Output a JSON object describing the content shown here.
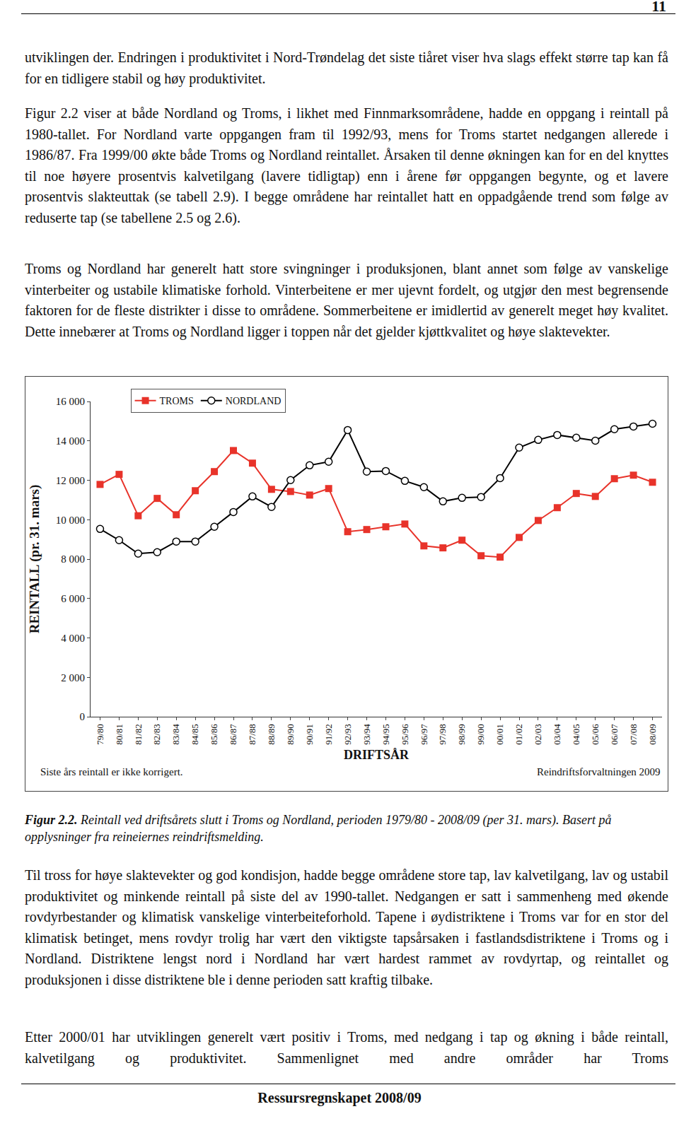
{
  "header": {
    "page_number": "11"
  },
  "paragraphs_before": [
    "utviklingen der. Endringen i produktivitet i Nord-Trøndelag det siste tiåret viser hva slags effekt større tap kan få for en tidligere stabil og høy produktivitet.",
    "Figur 2.2 viser at både Nordland og Troms, i likhet med Finnmarksområdene, hadde en oppgang i reintall på 1980-tallet. For Nordland varte oppgangen fram til 1992/93, mens for Troms startet nedgangen allerede i 1986/87. Fra 1999/00 økte både Troms og Nordland reintallet. Årsaken til denne økningen kan for en del knyttes til noe høyere prosentvis kalvetilgang (lavere tidligtap) enn i årene før oppgangen begynte, og et lavere prosentvis slakteuttak (se tabell 2.9). I begge områdene har reintallet hatt en oppadgående trend som følge av reduserte tap (se tabellene 2.5 og 2.6).",
    "Troms og Nordland har generelt hatt store svingninger i produksjonen, blant annet som følge av vanskelige vinterbeiter og ustabile klimatiske forhold. Vinterbeitene er mer ujevnt fordelt, og utgjør den mest begrensende faktoren for de fleste distrikter i disse to områdene. Sommerbeitene er imidlertid av generelt meget høy kvalitet. Dette innebærer at Troms og Nordland ligger i toppen når det gjelder kjøttkvalitet og høye slaktevekter."
  ],
  "chart_data": {
    "type": "line",
    "x_label": "DRIFTSÅR",
    "y_label": "REINTALL (pr. 31. mars)",
    "note": "Siste års reintall er ikke korrigert.",
    "source": "Reindriftsforvaltningen 2009",
    "categories": [
      "79/80",
      "80/81",
      "81/82",
      "82/83",
      "83/84",
      "84/85",
      "85/86",
      "86/87",
      "87/88",
      "88/89",
      "89/90",
      "90/91",
      "91/92",
      "92/93",
      "93/94",
      "94/95",
      "95/96",
      "96/97",
      "97/98",
      "98/99",
      "99/00",
      "00/01",
      "01/02",
      "02/03",
      "03/04",
      "04/05",
      "05/06",
      "06/07",
      "07/08",
      "08/09"
    ],
    "series": [
      {
        "name": "TROMS",
        "color": "#e8332a",
        "marker": "square",
        "values": [
          11790,
          12300,
          10200,
          11080,
          10250,
          11470,
          12440,
          13510,
          12870,
          11540,
          11430,
          11250,
          11580,
          9390,
          9500,
          9640,
          9780,
          8670,
          8570,
          8960,
          8170,
          8100,
          9100,
          9960,
          10610,
          11330,
          11180,
          12080,
          12260,
          11900
        ]
      },
      {
        "name": "NORDLAND",
        "color": "#000000",
        "marker": "circle-open",
        "values": [
          9530,
          8960,
          8280,
          8350,
          8890,
          8890,
          9640,
          10390,
          11180,
          10650,
          12010,
          12760,
          12940,
          14550,
          12440,
          12470,
          11970,
          11650,
          10930,
          11110,
          11150,
          12110,
          13660,
          14050,
          14300,
          14160,
          14010,
          14590,
          14730,
          14870
        ]
      }
    ],
    "ylim": [
      0,
      16000
    ],
    "yticks": [
      0,
      {
        "value": 2000,
        "label": "2 000"
      },
      {
        "value": 4000,
        "label": "4 000"
      },
      {
        "value": 6000,
        "label": "6 000"
      },
      {
        "value": 8000,
        "label": "8 000"
      },
      {
        "value": 10000,
        "label": "10 000"
      },
      {
        "value": 12000,
        "label": "12 000"
      },
      {
        "value": 14000,
        "label": "14 000"
      },
      {
        "value": 16000,
        "label": "16 000"
      }
    ],
    "grid": false,
    "legend": "top left"
  },
  "caption": {
    "label": "Figur 2.2.",
    "text": "Reintall ved driftsårets slutt i Troms og Nordland, perioden 1979/80 - 2008/09 (per 31. mars). Basert på opplysninger fra reineiernes reindriftsmelding."
  },
  "paragraphs_after": [
    "Til tross for høye slaktevekter og god kondisjon, hadde begge områdene store tap, lav kalvetilgang, lav og ustabil produktivitet og minkende reintall på siste del av 1990-tallet. Nedgangen er satt i sammenheng med økende rovdyrbestander og klimatisk vanskelige vinterbeiteforhold. Tapene i øydistriktene i Troms var for en stor del klimatisk betinget, mens rovdyr trolig har vært den viktigste tapsårsaken i fastlandsdistriktene i Troms og i Nordland. Distriktene lengst nord i Nordland har vært hardest rammet av rovdyrtap, og reintallet og produksjonen i disse distriktene ble i denne perioden satt kraftig tilbake.",
    "Etter 2000/01 har utviklingen generelt vært positiv i Troms, med nedgang i tap og økning i både reintall, kalvetilgang og produktivitet. Sammenlignet med andre områder har Troms"
  ],
  "footer": "Ressursregnskapet 2008/09"
}
